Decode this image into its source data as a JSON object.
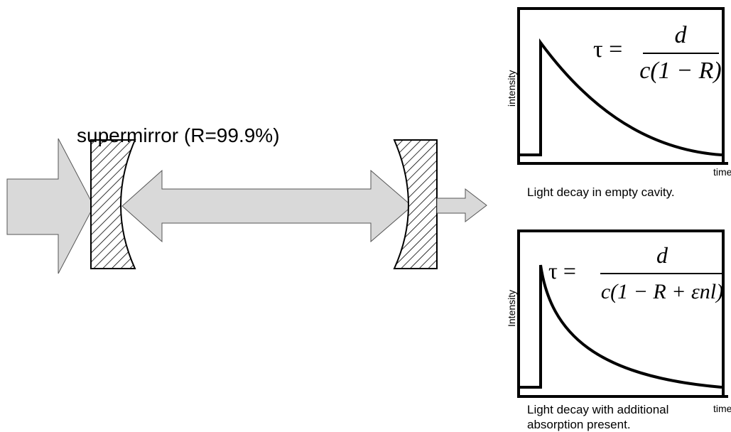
{
  "mirror_label": "supermirror (R=99.9%)",
  "panels": [
    {
      "y_label": "intensity",
      "x_label": "time",
      "formula": {
        "lhs": "τ =",
        "numerator": "d",
        "denominator": "c(1 − R)"
      },
      "caption": [
        "Light decay in empty cavity."
      ]
    },
    {
      "y_label": "Intensity",
      "x_label": "time",
      "formula": {
        "lhs": "τ =",
        "numerator": "d",
        "denominator": "c(1 − R + εnl)"
      },
      "caption": [
        "Light decay with additional",
        "absorption present."
      ]
    }
  ]
}
